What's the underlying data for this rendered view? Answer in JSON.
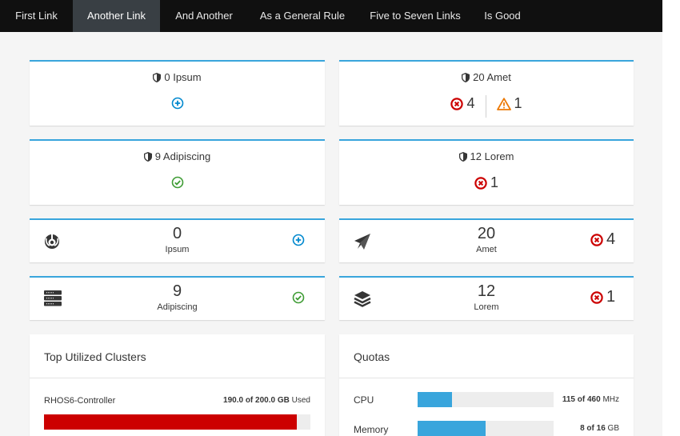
{
  "nav": {
    "items": [
      {
        "label": "First Link",
        "active": false
      },
      {
        "label": "Another Link",
        "active": true
      },
      {
        "label": "And Another",
        "active": false
      },
      {
        "label": "As a General Rule",
        "active": false
      },
      {
        "label": "Five to Seven Links",
        "active": false
      },
      {
        "label": "Is Good",
        "active": false
      }
    ]
  },
  "colors": {
    "accent": "#39a5dc",
    "error": "#cc0000",
    "warning": "#ec7a08",
    "ok": "#3f9c35",
    "nav_bg": "#101010"
  },
  "status_cards": [
    {
      "title": "0 Ipsum",
      "icon": "shield-icon",
      "status": [
        {
          "icon": "plus-circle-icon"
        }
      ]
    },
    {
      "title": "20 Amet",
      "icon": "shield-icon",
      "status": [
        {
          "icon": "error-circle-icon",
          "count": "4"
        },
        {
          "icon": "warning-triangle-icon",
          "count": "1"
        }
      ]
    },
    {
      "title": "9 Adipiscing",
      "icon": "shield-icon",
      "status": [
        {
          "icon": "ok-circle-icon"
        }
      ]
    },
    {
      "title": "12 Lorem",
      "icon": "shield-icon",
      "status": [
        {
          "icon": "error-circle-icon",
          "count": "1"
        }
      ]
    }
  ],
  "mini_cards": [
    {
      "icon": "rebel-icon",
      "count": "0",
      "label": "Ipsum",
      "status_icon": "plus-circle-icon",
      "status_count": ""
    },
    {
      "icon": "paper-plane-icon",
      "count": "20",
      "label": "Amet",
      "status_icon": "error-circle-icon",
      "status_count": "4"
    },
    {
      "icon": "server-icon",
      "count": "9",
      "label": "Adipiscing",
      "status_icon": "ok-circle-icon",
      "status_count": ""
    },
    {
      "icon": "layers-icon",
      "count": "12",
      "label": "Lorem",
      "status_icon": "error-circle-icon",
      "status_count": "1"
    }
  ],
  "clusters": {
    "title": "Top Utilized Clusters",
    "items": [
      {
        "name": "RHOS6-Controller",
        "used": "190.0",
        "total": "200.0",
        "unit": "GB",
        "suffix": "Used",
        "percent": 95
      }
    ]
  },
  "quotas": {
    "title": "Quotas",
    "items": [
      {
        "label": "CPU",
        "used": "115",
        "total": "460",
        "unit": "MHz",
        "percent": 25
      },
      {
        "label": "Memory",
        "used": "8",
        "total": "16",
        "unit": "GB",
        "percent": 50
      }
    ]
  }
}
